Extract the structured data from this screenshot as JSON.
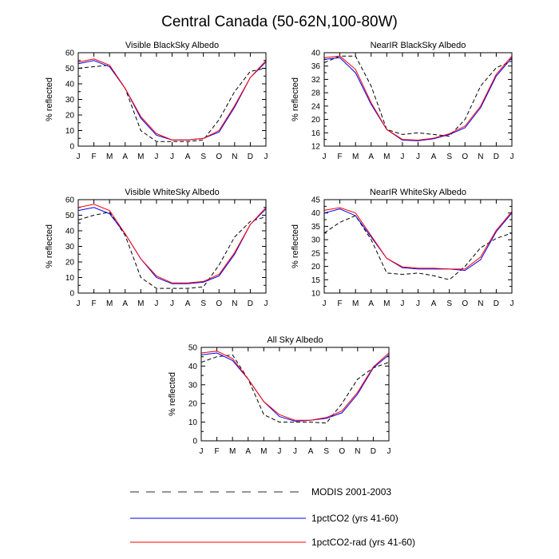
{
  "figure_title": "Central Canada (50-62N,100-80W)",
  "legend": {
    "entries": [
      {
        "label": "MODIS 2001-2003",
        "style": "dashed",
        "color": "#000000"
      },
      {
        "label": "1pctCO2 (yrs 41-60)",
        "style": "solid",
        "color": "#0000ff"
      },
      {
        "label": "1pctCO2-rad (yrs 41-60)",
        "style": "solid",
        "color": "#ff0000"
      }
    ]
  },
  "chart_data": [
    {
      "type": "line",
      "title": "Visible BlackSky Albedo",
      "ylabel": "% reflected",
      "categories": [
        "J",
        "F",
        "M",
        "A",
        "M",
        "J",
        "J",
        "A",
        "S",
        "O",
        "N",
        "D",
        "J"
      ],
      "ylim": [
        0,
        60
      ],
      "yticks": [
        0,
        10,
        20,
        30,
        40,
        50,
        60
      ],
      "series": [
        {
          "name": "MODIS 2001-2003",
          "values": [
            50,
            51,
            52,
            37,
            10,
            3,
            3,
            3,
            4,
            17,
            35,
            48,
            50
          ]
        },
        {
          "name": "1pctCO2 (yrs 41-60)",
          "values": [
            53,
            55,
            51,
            37,
            18,
            7,
            4,
            4,
            5,
            9,
            25,
            44,
            54
          ]
        },
        {
          "name": "1pctCO2-rad (yrs 41-60)",
          "values": [
            54,
            56,
            52,
            37,
            19,
            8,
            4,
            4,
            5,
            10,
            26,
            44,
            55
          ]
        }
      ]
    },
    {
      "type": "line",
      "title": "NearIR BlackSky Albedo",
      "ylabel": "% reflected",
      "categories": [
        "J",
        "F",
        "M",
        "A",
        "M",
        "J",
        "J",
        "A",
        "S",
        "O",
        "N",
        "D",
        "J"
      ],
      "ylim": [
        12,
        40
      ],
      "yticks": [
        12,
        16,
        20,
        24,
        28,
        32,
        36,
        40
      ],
      "series": [
        {
          "name": "MODIS 2001-2003",
          "values": [
            37,
            39,
            39,
            30,
            17,
            15.5,
            16,
            15.5,
            15,
            20,
            30,
            35.5,
            37.5
          ]
        },
        {
          "name": "1pctCO2 (yrs 41-60)",
          "values": [
            38,
            38.5,
            34,
            24.5,
            17,
            13.8,
            13.6,
            14.2,
            15.5,
            17.5,
            23.5,
            33,
            38.5
          ]
        },
        {
          "name": "1pctCO2-rad (yrs 41-60)",
          "values": [
            38.5,
            39,
            35,
            25,
            17,
            14,
            13.8,
            14.4,
            15.7,
            18,
            24,
            33.5,
            39
          ]
        }
      ]
    },
    {
      "type": "line",
      "title": "Visible WhiteSky Albedo",
      "ylabel": "% reflected",
      "categories": [
        "J",
        "F",
        "M",
        "A",
        "M",
        "J",
        "J",
        "A",
        "S",
        "O",
        "N",
        "D",
        "J"
      ],
      "ylim": [
        0,
        60
      ],
      "yticks": [
        0,
        10,
        20,
        30,
        40,
        50,
        60
      ],
      "series": [
        {
          "name": "MODIS 2001-2003",
          "values": [
            47,
            50,
            52,
            37,
            10,
            3,
            3,
            3,
            4,
            18,
            36,
            46,
            49
          ]
        },
        {
          "name": "1pctCO2 (yrs 41-60)",
          "values": [
            53,
            55,
            51,
            38,
            22,
            10,
            6,
            6,
            7,
            11,
            25,
            44,
            54
          ]
        },
        {
          "name": "1pctCO2-rad (yrs 41-60)",
          "values": [
            55,
            57,
            53,
            38,
            22,
            11,
            6.5,
            6.5,
            7.5,
            12,
            26,
            44,
            55
          ]
        }
      ]
    },
    {
      "type": "line",
      "title": "NearIR WhiteSky Albedo",
      "ylabel": "% reflected",
      "categories": [
        "J",
        "F",
        "M",
        "A",
        "M",
        "J",
        "J",
        "A",
        "S",
        "O",
        "N",
        "D",
        "J"
      ],
      "ylim": [
        10,
        45
      ],
      "yticks": [
        10,
        15,
        20,
        25,
        30,
        35,
        40,
        45
      ],
      "series": [
        {
          "name": "MODIS 2001-2003",
          "values": [
            32.5,
            36.5,
            39,
            30,
            17.5,
            17,
            17.5,
            16.5,
            15,
            20,
            27,
            30.5,
            32.5
          ]
        },
        {
          "name": "1pctCO2 (yrs 41-60)",
          "values": [
            40,
            41.5,
            39,
            31,
            23,
            19.5,
            19,
            19,
            19,
            18.5,
            22.5,
            33,
            40
          ]
        },
        {
          "name": "1pctCO2-rad (yrs 41-60)",
          "values": [
            41,
            42,
            40,
            31.5,
            23,
            19.8,
            19.3,
            19.3,
            19,
            19,
            23.5,
            33.5,
            40.5
          ]
        }
      ]
    },
    {
      "type": "line",
      "title": "All Sky Albedo",
      "ylabel": "% reflected",
      "categories": [
        "J",
        "F",
        "M",
        "A",
        "M",
        "J",
        "J",
        "A",
        "S",
        "O",
        "N",
        "D",
        "J"
      ],
      "ylim": [
        0,
        50
      ],
      "yticks": [
        0,
        10,
        20,
        30,
        40,
        50
      ],
      "series": [
        {
          "name": "MODIS 2001-2003",
          "values": [
            42,
            45,
            46,
            33,
            14,
            10,
            10,
            10,
            9.5,
            20,
            33,
            39,
            42
          ]
        },
        {
          "name": "1pctCO2 (yrs 41-60)",
          "values": [
            46,
            47,
            43,
            33,
            21,
            13,
            10.5,
            11,
            12,
            15,
            25,
            39,
            46
          ]
        },
        {
          "name": "1pctCO2-rad (yrs 41-60)",
          "values": [
            47,
            48,
            44,
            33,
            21,
            14,
            11,
            11,
            12.5,
            16,
            26,
            39.5,
            47
          ]
        }
      ]
    }
  ]
}
